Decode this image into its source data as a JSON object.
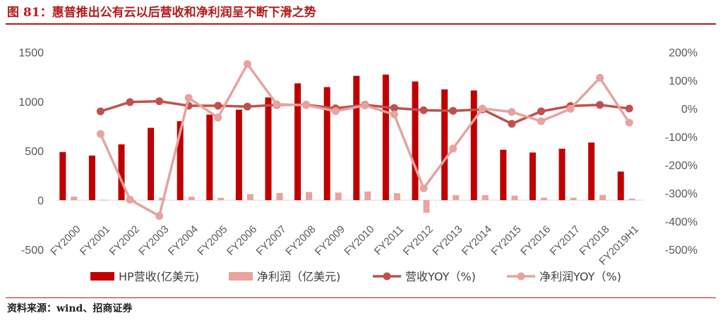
{
  "header": {
    "figure_title": "图 81：惠普推出公有云以后营收和净利润呈不断下滑之势"
  },
  "footer": {
    "source": "资料来源：wind、招商证券"
  },
  "colors": {
    "title": "#b31b1b",
    "revenue_bar": "#c00000",
    "profit_bar": "#e8a39e",
    "revenue_yoy_line": "#c0504d",
    "profit_yoy_line": "#e6a3a0"
  },
  "chart_data": {
    "type": "bar",
    "categories": [
      "FY2000",
      "FY2001",
      "FY2002",
      "FY2003",
      "FY2004",
      "FY2005",
      "FY2006",
      "FY2007",
      "FY2008",
      "FY2009",
      "FY2010",
      "FY2011",
      "FY2012",
      "FY2013",
      "FY2014",
      "FY2015",
      "FY2016",
      "FY2017",
      "FY2018",
      "FY2019H1"
    ],
    "ylim_left": [
      -500,
      1500
    ],
    "left_ticks": [
      "1500",
      "1000",
      "500",
      "0",
      "-500"
    ],
    "left_tick_values": [
      1500,
      1000,
      500,
      0,
      -500
    ],
    "ylim_right": [
      -500,
      200
    ],
    "right_ticks": [
      "200%",
      "100%",
      "0%",
      "-100%",
      "-200%",
      "-300%",
      "-400%",
      "-500%"
    ],
    "right_tick_values": [
      200,
      100,
      0,
      -100,
      -200,
      -300,
      -400,
      -500
    ],
    "legend_position": "bottom",
    "series": [
      {
        "name": "HP营收(亿美元)",
        "kind": "bar",
        "axis": "left",
        "values": [
          488,
          452,
          566,
          733,
          800,
          867,
          917,
          1041,
          1184,
          1146,
          1260,
          1273,
          1203,
          1123,
          1112,
          511,
          483,
          522,
          584,
          290
        ]
      },
      {
        "name": "净利润（亿美元)",
        "kind": "bar",
        "axis": "left",
        "values": [
          36,
          4,
          -9,
          25,
          35,
          24,
          62,
          73,
          83,
          77,
          88,
          71,
          -127,
          51,
          50,
          46,
          26,
          25,
          53,
          16
        ]
      },
      {
        "name": "营收YOY（%)",
        "kind": "line",
        "axis": "right",
        "values": [
          null,
          -10,
          23,
          26,
          10,
          10,
          7,
          13,
          13,
          1,
          13,
          2,
          -6,
          -8,
          -3,
          -54,
          -10,
          9,
          13,
          0
        ]
      },
      {
        "name": "净利润YOY（%)",
        "kind": "line",
        "axis": "right",
        "values": [
          null,
          -90,
          -323,
          -381,
          38,
          -32,
          158,
          15,
          12,
          -9,
          11,
          -21,
          -283,
          -142,
          0,
          -12,
          -45,
          -1,
          109,
          -50
        ]
      }
    ]
  }
}
